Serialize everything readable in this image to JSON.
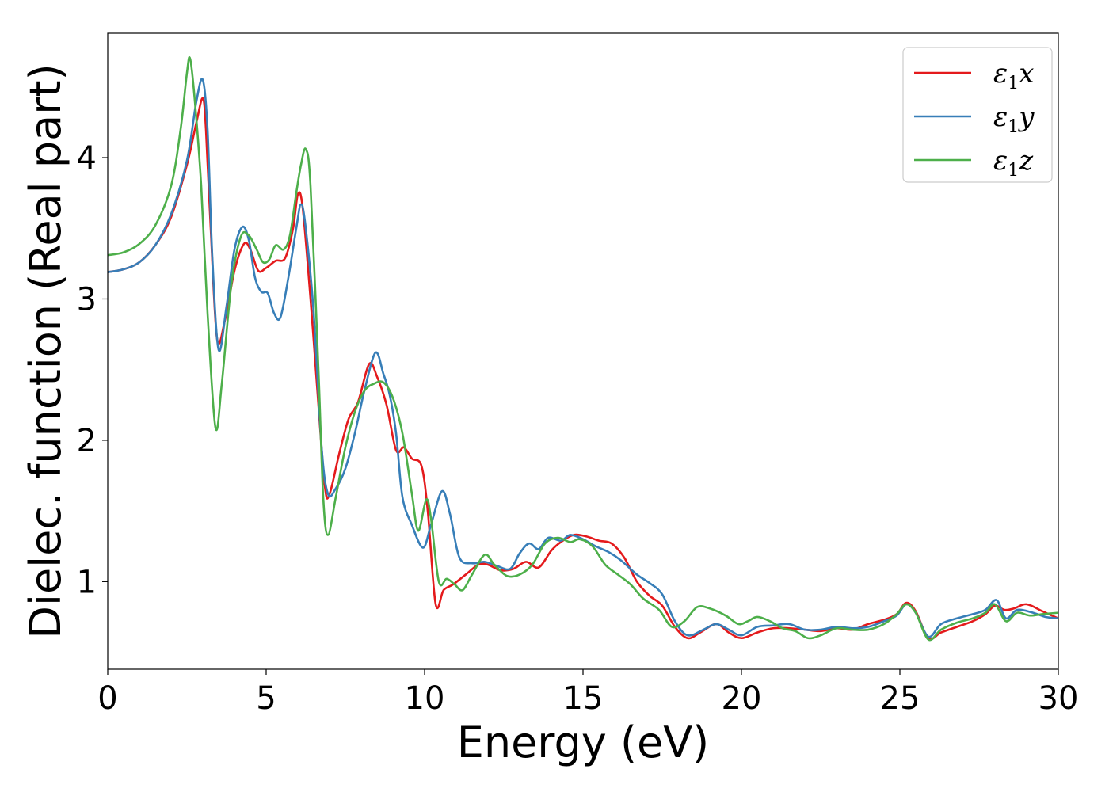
{
  "chart_data": {
    "type": "line",
    "title": "",
    "xlabel": "Energy (eV)",
    "ylabel": "Dielec. function (Real part)",
    "xlim": [
      0,
      30
    ],
    "ylim": [
      0.38,
      4.88
    ],
    "xticks": [
      0,
      5,
      10,
      15,
      20,
      25,
      30
    ],
    "yticks": [
      1,
      2,
      3,
      4
    ],
    "grid": false,
    "legend_position": "top-right",
    "series": [
      {
        "name": "ε1x",
        "legend_base": "ε",
        "legend_sub": "1",
        "legend_var": "x",
        "color": "#e41a1c",
        "points": [
          [
            0,
            3.19
          ],
          [
            0.5,
            3.21
          ],
          [
            1,
            3.26
          ],
          [
            1.5,
            3.38
          ],
          [
            2,
            3.58
          ],
          [
            2.5,
            3.95
          ],
          [
            2.8,
            4.25
          ],
          [
            3.0,
            4.42
          ],
          [
            3.1,
            4.2
          ],
          [
            3.25,
            3.5
          ],
          [
            3.45,
            2.72
          ],
          [
            3.7,
            2.85
          ],
          [
            4.0,
            3.2
          ],
          [
            4.3,
            3.39
          ],
          [
            4.5,
            3.35
          ],
          [
            4.75,
            3.2
          ],
          [
            5.0,
            3.22
          ],
          [
            5.3,
            3.27
          ],
          [
            5.6,
            3.29
          ],
          [
            5.85,
            3.5
          ],
          [
            6.0,
            3.74
          ],
          [
            6.15,
            3.65
          ],
          [
            6.4,
            3.0
          ],
          [
            6.6,
            2.4
          ],
          [
            6.85,
            1.68
          ],
          [
            7.0,
            1.62
          ],
          [
            7.3,
            1.9
          ],
          [
            7.6,
            2.15
          ],
          [
            7.9,
            2.27
          ],
          [
            8.25,
            2.54
          ],
          [
            8.5,
            2.45
          ],
          [
            8.8,
            2.25
          ],
          [
            9.1,
            1.93
          ],
          [
            9.35,
            1.95
          ],
          [
            9.6,
            1.87
          ],
          [
            9.9,
            1.82
          ],
          [
            10.1,
            1.5
          ],
          [
            10.35,
            0.84
          ],
          [
            10.6,
            0.94
          ],
          [
            10.9,
            0.98
          ],
          [
            11.3,
            1.05
          ],
          [
            11.7,
            1.12
          ],
          [
            12.0,
            1.12
          ],
          [
            12.4,
            1.08
          ],
          [
            12.8,
            1.09
          ],
          [
            13.2,
            1.14
          ],
          [
            13.6,
            1.1
          ],
          [
            14.0,
            1.22
          ],
          [
            14.3,
            1.28
          ],
          [
            14.7,
            1.33
          ],
          [
            15.1,
            1.32
          ],
          [
            15.5,
            1.29
          ],
          [
            15.9,
            1.27
          ],
          [
            16.3,
            1.17
          ],
          [
            16.7,
            1.0
          ],
          [
            17.1,
            0.9
          ],
          [
            17.5,
            0.83
          ],
          [
            17.9,
            0.68
          ],
          [
            18.3,
            0.6
          ],
          [
            18.7,
            0.64
          ],
          [
            19.2,
            0.7
          ],
          [
            19.6,
            0.64
          ],
          [
            20.0,
            0.6
          ],
          [
            20.5,
            0.64
          ],
          [
            21.0,
            0.67
          ],
          [
            21.5,
            0.67
          ],
          [
            22.0,
            0.66
          ],
          [
            22.5,
            0.65
          ],
          [
            23.0,
            0.67
          ],
          [
            23.5,
            0.66
          ],
          [
            24.0,
            0.7
          ],
          [
            24.5,
            0.73
          ],
          [
            24.9,
            0.77
          ],
          [
            25.2,
            0.85
          ],
          [
            25.5,
            0.79
          ],
          [
            25.9,
            0.6
          ],
          [
            26.3,
            0.64
          ],
          [
            26.8,
            0.68
          ],
          [
            27.3,
            0.72
          ],
          [
            27.7,
            0.77
          ],
          [
            28.0,
            0.83
          ],
          [
            28.3,
            0.8
          ],
          [
            28.6,
            0.81
          ],
          [
            29.0,
            0.84
          ],
          [
            29.5,
            0.79
          ],
          [
            30.0,
            0.74
          ]
        ]
      },
      {
        "name": "ε1y",
        "legend_base": "ε",
        "legend_sub": "1",
        "legend_var": "y",
        "color": "#377eb8",
        "points": [
          [
            0,
            3.19
          ],
          [
            0.5,
            3.21
          ],
          [
            1,
            3.26
          ],
          [
            1.5,
            3.38
          ],
          [
            2,
            3.6
          ],
          [
            2.5,
            3.98
          ],
          [
            2.8,
            4.4
          ],
          [
            3.0,
            4.55
          ],
          [
            3.15,
            4.2
          ],
          [
            3.3,
            3.3
          ],
          [
            3.5,
            2.64
          ],
          [
            3.75,
            2.95
          ],
          [
            4.0,
            3.35
          ],
          [
            4.25,
            3.51
          ],
          [
            4.45,
            3.42
          ],
          [
            4.65,
            3.15
          ],
          [
            4.85,
            3.05
          ],
          [
            5.05,
            3.04
          ],
          [
            5.25,
            2.9
          ],
          [
            5.45,
            2.87
          ],
          [
            5.7,
            3.15
          ],
          [
            5.95,
            3.5
          ],
          [
            6.1,
            3.67
          ],
          [
            6.25,
            3.5
          ],
          [
            6.5,
            2.9
          ],
          [
            6.75,
            1.95
          ],
          [
            6.95,
            1.62
          ],
          [
            7.2,
            1.66
          ],
          [
            7.5,
            1.8
          ],
          [
            7.8,
            2.05
          ],
          [
            8.1,
            2.35
          ],
          [
            8.45,
            2.62
          ],
          [
            8.7,
            2.47
          ],
          [
            8.9,
            2.32
          ],
          [
            9.1,
            2.05
          ],
          [
            9.3,
            1.6
          ],
          [
            9.6,
            1.4
          ],
          [
            9.95,
            1.24
          ],
          [
            10.2,
            1.4
          ],
          [
            10.55,
            1.64
          ],
          [
            10.8,
            1.48
          ],
          [
            11.1,
            1.17
          ],
          [
            11.5,
            1.13
          ],
          [
            11.9,
            1.14
          ],
          [
            12.3,
            1.11
          ],
          [
            12.7,
            1.09
          ],
          [
            13.0,
            1.2
          ],
          [
            13.3,
            1.27
          ],
          [
            13.6,
            1.23
          ],
          [
            13.9,
            1.31
          ],
          [
            14.3,
            1.29
          ],
          [
            14.6,
            1.33
          ],
          [
            15.0,
            1.3
          ],
          [
            15.4,
            1.25
          ],
          [
            15.8,
            1.21
          ],
          [
            16.2,
            1.15
          ],
          [
            16.7,
            1.05
          ],
          [
            17.1,
            0.99
          ],
          [
            17.5,
            0.91
          ],
          [
            17.9,
            0.72
          ],
          [
            18.3,
            0.62
          ],
          [
            18.8,
            0.66
          ],
          [
            19.2,
            0.7
          ],
          [
            19.6,
            0.66
          ],
          [
            20.0,
            0.62
          ],
          [
            20.5,
            0.68
          ],
          [
            21.0,
            0.69
          ],
          [
            21.5,
            0.7
          ],
          [
            22.0,
            0.66
          ],
          [
            22.5,
            0.66
          ],
          [
            23.0,
            0.68
          ],
          [
            23.5,
            0.67
          ],
          [
            24.0,
            0.68
          ],
          [
            24.5,
            0.72
          ],
          [
            24.9,
            0.76
          ],
          [
            25.2,
            0.84
          ],
          [
            25.5,
            0.78
          ],
          [
            25.9,
            0.61
          ],
          [
            26.3,
            0.7
          ],
          [
            26.8,
            0.74
          ],
          [
            27.3,
            0.77
          ],
          [
            27.7,
            0.8
          ],
          [
            28.05,
            0.87
          ],
          [
            28.35,
            0.74
          ],
          [
            28.7,
            0.8
          ],
          [
            29.2,
            0.78
          ],
          [
            29.6,
            0.75
          ],
          [
            30.0,
            0.74
          ]
        ]
      },
      {
        "name": "ε1z",
        "legend_base": "ε",
        "legend_sub": "1",
        "legend_var": "z",
        "color": "#4daf4a",
        "points": [
          [
            0,
            3.31
          ],
          [
            0.5,
            3.33
          ],
          [
            1,
            3.39
          ],
          [
            1.5,
            3.52
          ],
          [
            2,
            3.8
          ],
          [
            2.3,
            4.2
          ],
          [
            2.5,
            4.6
          ],
          [
            2.6,
            4.7
          ],
          [
            2.75,
            4.4
          ],
          [
            2.95,
            3.8
          ],
          [
            3.15,
            2.9
          ],
          [
            3.4,
            2.09
          ],
          [
            3.6,
            2.4
          ],
          [
            3.9,
            3.1
          ],
          [
            4.2,
            3.44
          ],
          [
            4.45,
            3.45
          ],
          [
            4.7,
            3.35
          ],
          [
            4.9,
            3.26
          ],
          [
            5.1,
            3.28
          ],
          [
            5.3,
            3.38
          ],
          [
            5.55,
            3.35
          ],
          [
            5.75,
            3.45
          ],
          [
            5.95,
            3.75
          ],
          [
            6.1,
            3.95
          ],
          [
            6.25,
            4.06
          ],
          [
            6.4,
            3.8
          ],
          [
            6.65,
            2.5
          ],
          [
            6.8,
            1.6
          ],
          [
            6.95,
            1.33
          ],
          [
            7.2,
            1.6
          ],
          [
            7.5,
            1.95
          ],
          [
            7.8,
            2.2
          ],
          [
            8.1,
            2.35
          ],
          [
            8.4,
            2.4
          ],
          [
            8.7,
            2.41
          ],
          [
            9.0,
            2.3
          ],
          [
            9.3,
            2.05
          ],
          [
            9.6,
            1.62
          ],
          [
            9.8,
            1.36
          ],
          [
            10.05,
            1.58
          ],
          [
            10.2,
            1.45
          ],
          [
            10.45,
            1.0
          ],
          [
            10.7,
            1.02
          ],
          [
            10.95,
            0.98
          ],
          [
            11.2,
            0.94
          ],
          [
            11.5,
            1.05
          ],
          [
            11.9,
            1.19
          ],
          [
            12.2,
            1.12
          ],
          [
            12.6,
            1.04
          ],
          [
            13.0,
            1.05
          ],
          [
            13.4,
            1.12
          ],
          [
            13.8,
            1.27
          ],
          [
            14.2,
            1.31
          ],
          [
            14.6,
            1.28
          ],
          [
            14.9,
            1.3
          ],
          [
            15.3,
            1.25
          ],
          [
            15.7,
            1.12
          ],
          [
            16.1,
            1.05
          ],
          [
            16.5,
            0.98
          ],
          [
            16.9,
            0.88
          ],
          [
            17.4,
            0.8
          ],
          [
            17.8,
            0.68
          ],
          [
            18.2,
            0.72
          ],
          [
            18.6,
            0.82
          ],
          [
            19.0,
            0.81
          ],
          [
            19.5,
            0.76
          ],
          [
            19.9,
            0.7
          ],
          [
            20.2,
            0.72
          ],
          [
            20.5,
            0.75
          ],
          [
            20.9,
            0.72
          ],
          [
            21.3,
            0.67
          ],
          [
            21.7,
            0.65
          ],
          [
            22.1,
            0.6
          ],
          [
            22.5,
            0.62
          ],
          [
            23.0,
            0.67
          ],
          [
            23.5,
            0.66
          ],
          [
            24.0,
            0.66
          ],
          [
            24.5,
            0.7
          ],
          [
            24.9,
            0.77
          ],
          [
            25.2,
            0.84
          ],
          [
            25.5,
            0.78
          ],
          [
            25.9,
            0.59
          ],
          [
            26.3,
            0.66
          ],
          [
            26.8,
            0.71
          ],
          [
            27.3,
            0.74
          ],
          [
            27.7,
            0.78
          ],
          [
            28.0,
            0.84
          ],
          [
            28.35,
            0.72
          ],
          [
            28.7,
            0.78
          ],
          [
            29.1,
            0.76
          ],
          [
            29.5,
            0.77
          ],
          [
            30.0,
            0.78
          ]
        ]
      }
    ]
  }
}
